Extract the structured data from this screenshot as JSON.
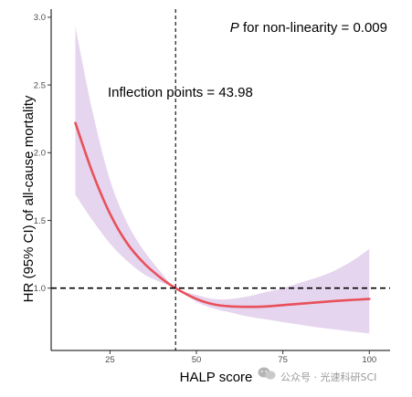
{
  "chart_data": {
    "type": "line",
    "xlabel": "HALP score",
    "ylabel": "HR (95% CI) of all-cause mortality",
    "xlim": [
      8,
      106
    ],
    "ylim": [
      0.54,
      3.06
    ],
    "x_ticks": [
      25,
      50,
      75,
      100
    ],
    "x_tick_labels": [
      "25",
      "50",
      "75",
      "100"
    ],
    "y_ticks": [
      1.0,
      1.5,
      2.0,
      2.5,
      3.0
    ],
    "y_tick_labels": [
      "1.0",
      "1.5",
      "2.0",
      "2.5",
      "3.0"
    ],
    "grid": false,
    "series": [
      {
        "kind": "hr-curve",
        "color": "#e8505b",
        "x": [
          15,
          20,
          25,
          30,
          35,
          40,
          43.98,
          50,
          55,
          60,
          65,
          70,
          75,
          80,
          85,
          90,
          95,
          100
        ],
        "y": [
          2.22,
          1.85,
          1.55,
          1.33,
          1.18,
          1.07,
          1.0,
          0.92,
          0.88,
          0.865,
          0.862,
          0.865,
          0.875,
          0.885,
          0.895,
          0.905,
          0.913,
          0.92
        ],
        "lower": [
          1.69,
          1.5,
          1.33,
          1.2,
          1.1,
          1.04,
          1.0,
          0.9,
          0.85,
          0.82,
          0.79,
          0.77,
          0.75,
          0.73,
          0.71,
          0.695,
          0.68,
          0.665
        ],
        "upper": [
          2.93,
          2.3,
          1.8,
          1.48,
          1.27,
          1.11,
          1.0,
          0.95,
          0.92,
          0.92,
          0.94,
          0.97,
          1.0,
          1.04,
          1.08,
          1.13,
          1.2,
          1.29
        ]
      }
    ],
    "ci_fill_color": "#e5d5ee",
    "reference_lines": {
      "hr_reference_y": 1.0,
      "inflection_x": 43.98
    },
    "annotations": {
      "p_label_italic": "P",
      "p_label_rest": " for non-linearity = 0.009",
      "inflection_label": "Inflection points = 43.98"
    }
  },
  "watermark": {
    "icon": "wechat-icon",
    "text": "公众号 · 光速科研SCI"
  }
}
